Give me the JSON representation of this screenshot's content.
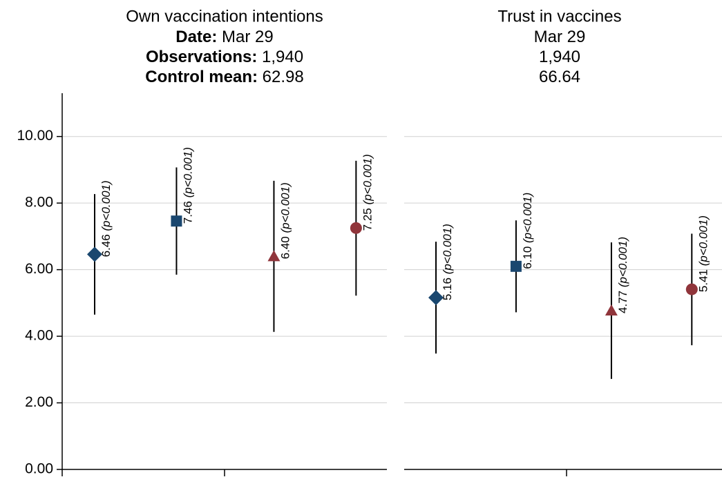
{
  "chart_data": [
    {
      "type": "errorbar",
      "title": "Own vaccination intentions",
      "subtitle_lines": [
        {
          "label": "Date:",
          "text": "Mar 29"
        },
        {
          "label": "Observations:",
          "text": "1,940"
        },
        {
          "label": "Control mean:",
          "text": "62.98"
        }
      ],
      "values": [
        6.46,
        7.46,
        6.4,
        7.25
      ],
      "value_labels": [
        "6.46",
        "7.46",
        "6.40",
        "7.25"
      ],
      "p_labels": [
        "(p<0.001)",
        "(p<0.001)",
        "(p<0.001)",
        "(p<0.001)"
      ],
      "lower": [
        4.65,
        5.85,
        4.13,
        5.22
      ],
      "upper": [
        8.27,
        9.07,
        8.67,
        9.27
      ],
      "markers": [
        "diamond",
        "square",
        "triangle",
        "circle"
      ],
      "colors": [
        "#1a476f",
        "#1a476f",
        "#90353b",
        "#90353b"
      ],
      "ylim": [
        0,
        11.3
      ],
      "yticks": [
        {
          "value": 0,
          "label": "0.00"
        },
        {
          "value": 2,
          "label": "2.00"
        },
        {
          "value": 4,
          "label": "4.00"
        },
        {
          "value": 6,
          "label": "6.00"
        },
        {
          "value": 8,
          "label": "8.00"
        },
        {
          "value": 10,
          "label": "10.00"
        }
      ],
      "grid": true
    },
    {
      "type": "errorbar",
      "title": "Trust in vaccines",
      "subtitle_lines": [
        {
          "text": "Mar 29"
        },
        {
          "text": "1,940"
        },
        {
          "text": "66.64"
        }
      ],
      "values": [
        5.16,
        6.1,
        4.77,
        5.41
      ],
      "value_labels": [
        "5.16",
        "6.10",
        "4.77",
        "5.41"
      ],
      "p_labels": [
        "(p<0.001)",
        "(p<0.001)",
        "(p<0.001)",
        "(p<0.001)"
      ],
      "lower": [
        3.48,
        4.72,
        2.72,
        3.73
      ],
      "upper": [
        6.84,
        7.48,
        6.82,
        7.08
      ],
      "markers": [
        "diamond",
        "square",
        "triangle",
        "circle"
      ],
      "colors": [
        "#1a476f",
        "#1a476f",
        "#90353b",
        "#90353b"
      ],
      "ylim": [
        0,
        11.3
      ],
      "grid": true
    }
  ]
}
